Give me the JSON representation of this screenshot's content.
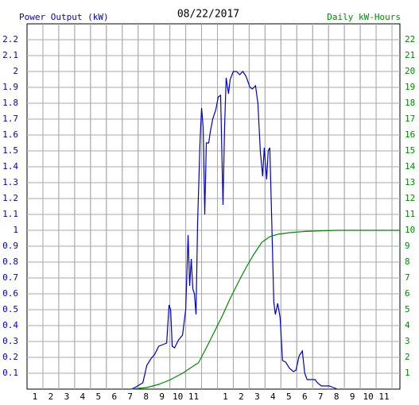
{
  "chart_data": {
    "type": "line",
    "title": "08/22/2017",
    "y_label": "Power Output (kW)",
    "y2_label": "Daily kW-Hours",
    "grid": true,
    "xlim": [
      0.5,
      24
    ],
    "xticks": [
      1,
      2,
      3,
      4,
      5,
      6,
      7,
      8,
      9,
      10,
      11,
      {
        "value": 13,
        "label": "1"
      },
      {
        "value": 14,
        "label": "2"
      },
      {
        "value": 15,
        "label": "3"
      },
      {
        "value": 16,
        "label": "4"
      },
      {
        "value": 17,
        "label": "5"
      },
      {
        "value": 18,
        "label": "6"
      },
      {
        "value": 19,
        "label": "7"
      },
      {
        "value": 20,
        "label": "8"
      },
      {
        "value": 21,
        "label": "9"
      },
      {
        "value": 22,
        "label": "10"
      },
      {
        "value": 23,
        "label": "11"
      }
    ],
    "ylim": [
      0,
      2.3
    ],
    "yticks": [
      0.1,
      0.2,
      0.3,
      0.4,
      0.5,
      0.6,
      0.7,
      0.8,
      0.9,
      1.0,
      1.1,
      1.2,
      1.3,
      1.4,
      1.5,
      1.6,
      1.7,
      1.8,
      1.9,
      2.0,
      2.1,
      2.2
    ],
    "y2lim": [
      0,
      23
    ],
    "y2ticks": [
      1,
      2,
      3,
      4,
      5,
      6,
      7,
      8,
      9,
      10,
      11,
      12,
      13,
      14,
      15,
      16,
      17,
      18,
      19,
      20,
      21,
      22
    ],
    "series": [
      {
        "color": "#0000cc",
        "x": [
          7.05,
          7.3,
          7.8,
          8.05,
          8.3,
          8.55,
          8.8,
          9.05,
          9.3,
          9.45,
          9.55,
          9.65,
          9.8,
          10.05,
          10.3,
          10.5,
          10.65,
          10.75,
          10.85,
          10.95,
          11.05,
          11.15,
          11.25,
          11.4,
          11.5,
          11.6,
          11.7,
          11.8,
          11.95,
          12.05,
          12.2,
          12.4,
          12.55,
          12.7,
          12.85,
          12.95,
          13.05,
          13.2,
          13.3,
          13.5,
          13.7,
          13.9,
          14.1,
          14.3,
          14.55,
          14.7,
          14.9,
          15.05,
          15.2,
          15.35,
          15.45,
          15.6,
          15.7,
          15.8,
          15.95,
          16.05,
          16.15,
          16.3,
          16.45,
          16.6,
          16.8,
          17.05,
          17.3,
          17.45,
          17.65,
          17.85,
          18,
          18.15,
          18.4,
          18.65,
          18.8,
          19.05,
          19.55,
          19.8,
          20.05
        ],
        "values": [
          0,
          0.01,
          0.04,
          0.15,
          0.19,
          0.22,
          0.27,
          0.28,
          0.29,
          0.53,
          0.5,
          0.27,
          0.26,
          0.31,
          0.34,
          0.5,
          0.97,
          0.65,
          0.82,
          0.63,
          0.6,
          0.47,
          1.05,
          1.55,
          1.77,
          1.65,
          1.1,
          1.55,
          1.55,
          1.62,
          1.7,
          1.76,
          1.84,
          1.85,
          1.16,
          1.65,
          1.96,
          1.86,
          1.95,
          2.0,
          2.0,
          1.98,
          2.0,
          1.97,
          1.9,
          1.89,
          1.91,
          1.8,
          1.5,
          1.34,
          1.52,
          1.32,
          1.5,
          1.52,
          0.95,
          0.55,
          0.47,
          0.54,
          0.45,
          0.18,
          0.17,
          0.13,
          0.11,
          0.12,
          0.21,
          0.24,
          0.1,
          0.06,
          0.06,
          0.06,
          0.04,
          0.02,
          0.02,
          0.01,
          0
        ]
      },
      {
        "color": "#008800",
        "axis": "y2",
        "x": [
          7.05,
          8.05,
          8.8,
          9.55,
          10.3,
          11.05,
          11.3,
          11.8,
          12.3,
          12.8,
          13.3,
          13.8,
          14.3,
          14.8,
          15.3,
          15.8,
          16.3,
          17.05,
          18.05,
          19.05,
          20.05,
          24
        ],
        "values": [
          0,
          0.1,
          0.3,
          0.6,
          1.0,
          1.5,
          1.65,
          2.6,
          3.6,
          4.6,
          5.7,
          6.7,
          7.65,
          8.5,
          9.25,
          9.6,
          9.75,
          9.85,
          9.93,
          9.97,
          10.0,
          10.0
        ]
      }
    ]
  }
}
